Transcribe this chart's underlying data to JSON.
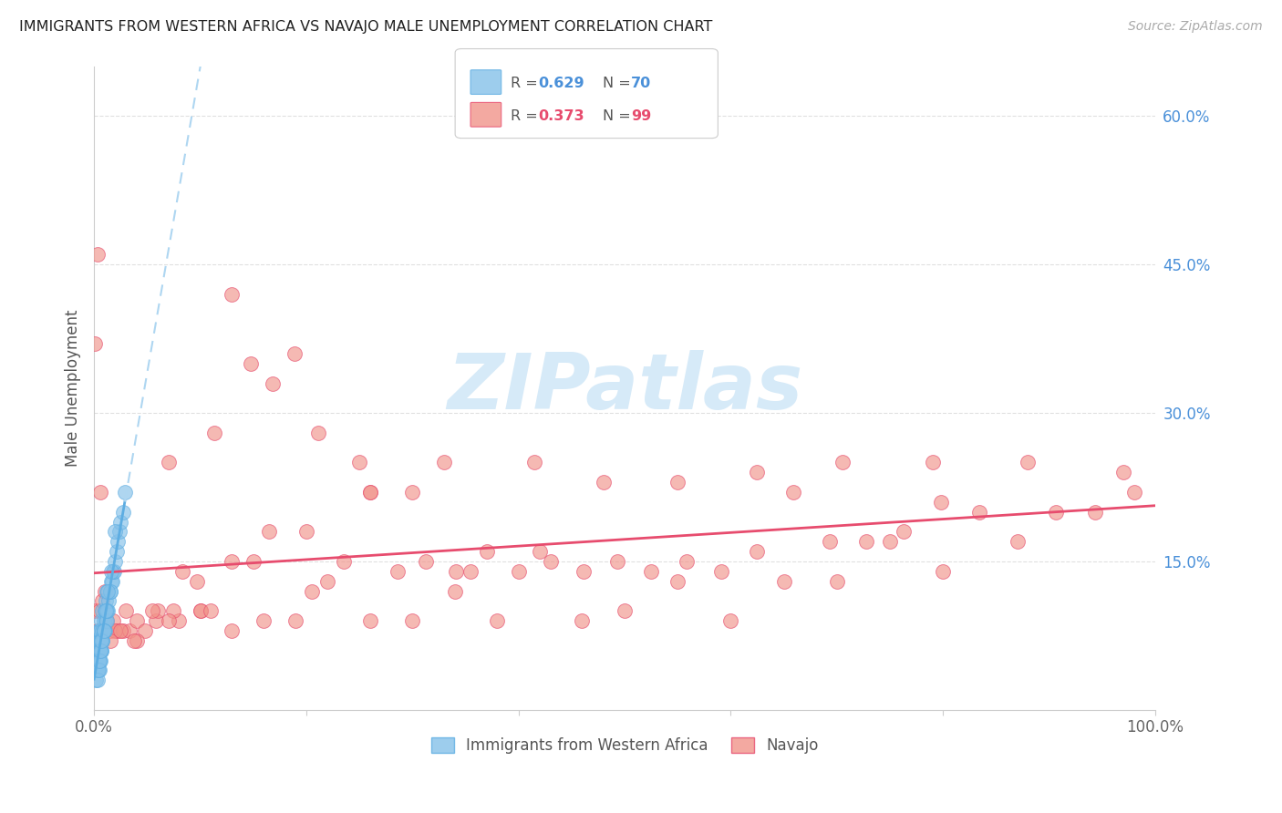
{
  "title": "IMMIGRANTS FROM WESTERN AFRICA VS NAVAJO MALE UNEMPLOYMENT CORRELATION CHART",
  "source_text": "Source: ZipAtlas.com",
  "ylabel": "Male Unemployment",
  "xlim": [
    0.0,
    1.0
  ],
  "ylim": [
    0.0,
    0.65
  ],
  "y_tick_labels_right": [
    "15.0%",
    "30.0%",
    "45.0%",
    "60.0%"
  ],
  "y_ticks_right": [
    0.15,
    0.3,
    0.45,
    0.6
  ],
  "color_blue": "#85c1e9",
  "color_pink": "#f1948a",
  "color_blue_edge": "#5dade2",
  "color_pink_edge": "#e74c6e",
  "color_blue_line": "#5dade2",
  "color_pink_line": "#e74c6e",
  "color_dashed": "#aed6f1",
  "watermark_color": "#d6eaf8",
  "background_color": "#ffffff",
  "grid_color": "#e0e0e0",
  "blue_x": [
    0.001,
    0.001,
    0.001,
    0.002,
    0.002,
    0.002,
    0.002,
    0.003,
    0.003,
    0.003,
    0.003,
    0.004,
    0.004,
    0.004,
    0.004,
    0.005,
    0.005,
    0.005,
    0.005,
    0.006,
    0.006,
    0.006,
    0.007,
    0.007,
    0.007,
    0.008,
    0.008,
    0.008,
    0.009,
    0.009,
    0.01,
    0.01,
    0.011,
    0.011,
    0.012,
    0.012,
    0.013,
    0.014,
    0.015,
    0.016,
    0.017,
    0.018,
    0.019,
    0.02,
    0.021,
    0.022,
    0.024,
    0.025,
    0.027,
    0.029,
    0.002,
    0.003,
    0.004,
    0.005,
    0.006,
    0.007,
    0.008,
    0.009,
    0.012,
    0.015,
    0.003,
    0.004,
    0.005,
    0.006,
    0.007,
    0.009,
    0.011,
    0.013,
    0.016,
    0.02
  ],
  "blue_y": [
    0.04,
    0.05,
    0.06,
    0.04,
    0.05,
    0.06,
    0.07,
    0.04,
    0.05,
    0.06,
    0.07,
    0.05,
    0.06,
    0.07,
    0.08,
    0.05,
    0.06,
    0.07,
    0.08,
    0.06,
    0.07,
    0.08,
    0.06,
    0.07,
    0.09,
    0.07,
    0.08,
    0.1,
    0.08,
    0.09,
    0.08,
    0.1,
    0.09,
    0.11,
    0.09,
    0.12,
    0.1,
    0.11,
    0.12,
    0.13,
    0.13,
    0.14,
    0.14,
    0.15,
    0.16,
    0.17,
    0.18,
    0.19,
    0.2,
    0.22,
    0.03,
    0.04,
    0.05,
    0.04,
    0.05,
    0.06,
    0.07,
    0.08,
    0.1,
    0.12,
    0.03,
    0.04,
    0.05,
    0.06,
    0.07,
    0.08,
    0.1,
    0.12,
    0.14,
    0.18
  ],
  "pink_x": [
    0.001,
    0.002,
    0.003,
    0.005,
    0.008,
    0.01,
    0.012,
    0.015,
    0.018,
    0.022,
    0.027,
    0.033,
    0.04,
    0.048,
    0.058,
    0.07,
    0.083,
    0.097,
    0.113,
    0.13,
    0.148,
    0.168,
    0.189,
    0.211,
    0.235,
    0.26,
    0.286,
    0.313,
    0.341,
    0.37,
    0.4,
    0.43,
    0.461,
    0.493,
    0.525,
    0.558,
    0.591,
    0.625,
    0.659,
    0.693,
    0.728,
    0.763,
    0.798,
    0.834,
    0.87,
    0.906,
    0.943,
    0.98,
    0.02,
    0.04,
    0.06,
    0.08,
    0.1,
    0.13,
    0.16,
    0.19,
    0.22,
    0.26,
    0.3,
    0.34,
    0.38,
    0.42,
    0.46,
    0.5,
    0.55,
    0.6,
    0.65,
    0.7,
    0.75,
    0.8,
    0.003,
    0.006,
    0.01,
    0.015,
    0.025,
    0.038,
    0.055,
    0.075,
    0.1,
    0.13,
    0.165,
    0.205,
    0.25,
    0.3,
    0.355,
    0.415,
    0.48,
    0.55,
    0.625,
    0.705,
    0.79,
    0.88,
    0.97,
    0.03,
    0.07,
    0.11,
    0.15,
    0.2,
    0.26,
    0.33
  ],
  "pink_y": [
    0.37,
    0.1,
    0.08,
    0.1,
    0.11,
    0.08,
    0.09,
    0.08,
    0.09,
    0.08,
    0.08,
    0.08,
    0.09,
    0.08,
    0.09,
    0.25,
    0.14,
    0.13,
    0.28,
    0.42,
    0.35,
    0.33,
    0.36,
    0.28,
    0.15,
    0.22,
    0.14,
    0.15,
    0.14,
    0.16,
    0.14,
    0.15,
    0.14,
    0.15,
    0.14,
    0.15,
    0.14,
    0.16,
    0.22,
    0.17,
    0.17,
    0.18,
    0.21,
    0.2,
    0.17,
    0.2,
    0.2,
    0.22,
    0.08,
    0.07,
    0.1,
    0.09,
    0.1,
    0.08,
    0.09,
    0.09,
    0.13,
    0.09,
    0.09,
    0.12,
    0.09,
    0.16,
    0.09,
    0.1,
    0.13,
    0.09,
    0.13,
    0.13,
    0.17,
    0.14,
    0.46,
    0.22,
    0.12,
    0.07,
    0.08,
    0.07,
    0.1,
    0.1,
    0.1,
    0.15,
    0.18,
    0.12,
    0.25,
    0.22,
    0.14,
    0.25,
    0.23,
    0.23,
    0.24,
    0.25,
    0.25,
    0.25,
    0.24,
    0.1,
    0.09,
    0.1,
    0.15,
    0.18,
    0.22,
    0.25
  ]
}
